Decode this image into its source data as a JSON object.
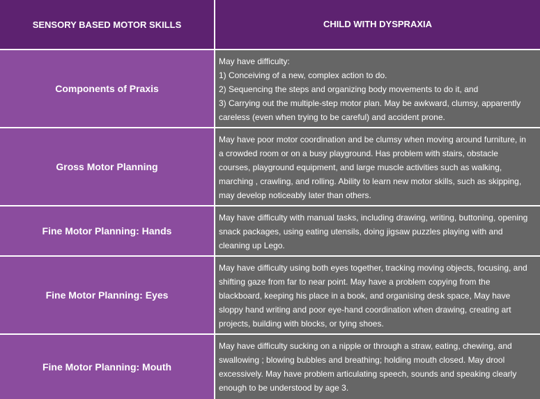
{
  "header": {
    "col1": "SENSORY BASED MOTOR SKILLS",
    "col2": "CHILD WITH DYSPRAXIA"
  },
  "colors": {
    "header": "#5d2270",
    "skill_cell": "#8b4c9e",
    "description_cell": "#666666"
  },
  "rows": [
    {
      "skill": "Components of Praxis",
      "lines": [
        "May have difficulty:",
        "1) Conceiving of a new, complex action to do.",
        "2) Sequencing the steps and organizing body movements to do it, and",
        "3) Carrying out the multiple-step motor plan. May be awkward, clumsy, apparently",
        "careless (even when trying to be careful) and accident prone."
      ]
    },
    {
      "skill": "Gross Motor Planning",
      "lines": [
        "May have poor motor coordination and be clumsy when moving around furniture, in",
        "a crowded room or on a busy playground. Has problem with stairs, obstacle",
        "courses, playground equipment, and large muscle activities such as walking,",
        "marching , crawling, and rolling. Ability to learn new motor skills, such as skipping,",
        "may develop noticeably later than others."
      ]
    },
    {
      "skill": "Fine Motor Planning: Hands",
      "lines": [
        "May have difficulty with manual tasks, including drawing, writing, buttoning, opening",
        "snack packages, using eating utensils, doing jigsaw puzzles playing with and",
        "cleaning up Lego."
      ]
    },
    {
      "skill": "Fine Motor Planning: Eyes",
      "lines": [
        "May have difficulty using both eyes together, tracking moving objects, focusing, and",
        "shifting gaze from far to near point. May have a problem copying from the",
        "blackboard, keeping his place in a book, and organising desk space, May have",
        "sloppy hand writing and poor eye-hand coordination when drawing, creating art",
        "projects, building with blocks, or tying shoes."
      ]
    },
    {
      "skill": "Fine Motor Planning: Mouth",
      "lines": [
        "May have difficulty sucking on a nipple or through a straw, eating, chewing, and",
        "swallowing ; blowing bubbles and breathing; holding mouth closed. May drool",
        "excessively. May have problem articulating speech, sounds and speaking clearly",
        "enough to be understood by age 3."
      ]
    }
  ]
}
